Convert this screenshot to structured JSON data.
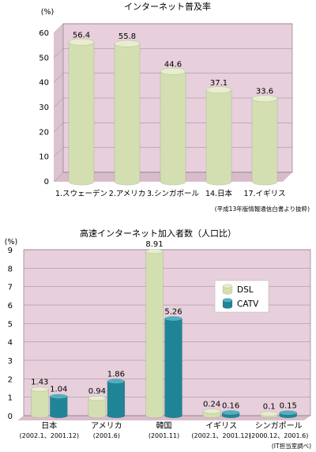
{
  "chart_data": [
    {
      "type": "bar",
      "title": "インターネット普及率",
      "unit_label": "(%)",
      "categories": [
        "1.スウェーデン",
        "2.アメリカ",
        "3.シンガポール",
        "14.日本",
        "17.イギリス"
      ],
      "values": [
        56.4,
        55.8,
        44.6,
        37.1,
        33.6
      ],
      "value_labels": [
        "56.4",
        "55.8",
        "44.6",
        "37.1",
        "33.6"
      ],
      "ylim": [
        0,
        60
      ],
      "yticks": [
        0,
        10,
        20,
        30,
        40,
        50,
        60
      ],
      "grid": true,
      "source": "(平成13年版情報通信白書より抜粋)",
      "colors": {
        "bar": "#d3dfb0",
        "bar_top": "#e6eecd",
        "panel": "#e7cfdb",
        "floor": "#d9bccb",
        "wall": "#dcc3d0"
      }
    },
    {
      "type": "bar",
      "title": "高速インターネット加入者数（人口比）",
      "unit_label": "(%)",
      "categories": [
        "日本",
        "アメリカ",
        "韓国",
        "イギリス",
        "シンガポール"
      ],
      "category_notes": [
        "(2002.1、2001.12)",
        "(2001.6)",
        "(2001.11)",
        "(2002.1、2001.12)",
        "(2000.12、2001.6)"
      ],
      "series": [
        {
          "name": "DSL",
          "values": [
            1.43,
            0.94,
            8.91,
            0.24,
            0.1
          ],
          "value_labels": [
            "1.43",
            "0.94",
            "8.91",
            "0.24",
            "0.1"
          ]
        },
        {
          "name": "CATV",
          "values": [
            1.04,
            1.86,
            5.26,
            0.16,
            0.15
          ],
          "value_labels": [
            "1.04",
            "1.86",
            "5.26",
            "0.16",
            "0.15"
          ]
        }
      ],
      "ylim": [
        0,
        9
      ],
      "yticks": [
        0,
        1,
        2,
        3,
        4,
        5,
        6,
        7,
        8,
        9
      ],
      "grid": true,
      "legend_position": "right",
      "source": "(IT担当室調べ)",
      "colors": {
        "dsl": "#d3dfb0",
        "dsl_top": "#e6eecd",
        "catv": "#1f8596",
        "catv_top": "#4fb0c0",
        "panel": "#e7cfdb",
        "floor": "#d9bccb"
      }
    }
  ]
}
